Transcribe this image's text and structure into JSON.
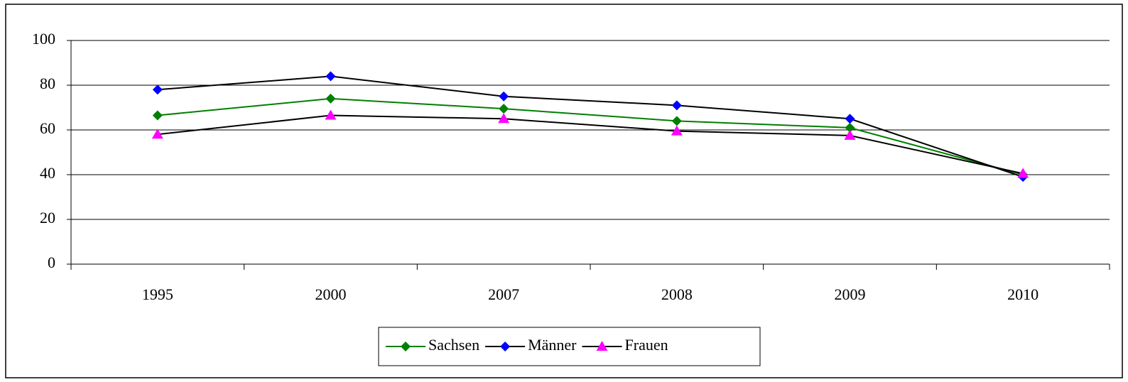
{
  "chart_data": {
    "type": "line",
    "categories": [
      "1995",
      "2000",
      "2007",
      "2008",
      "2009",
      "2010"
    ],
    "series": [
      {
        "name": "Sachsen",
        "color": "#008000",
        "line_color": "#008000",
        "marker": "diamond",
        "values": [
          66.5,
          74,
          69.5,
          64,
          61,
          40
        ]
      },
      {
        "name": "Männer",
        "color": "#0000ff",
        "line_color": "#000000",
        "marker": "diamond",
        "values": [
          78,
          84,
          75,
          71,
          65,
          39
        ]
      },
      {
        "name": "Frauen",
        "color": "#ff00ff",
        "line_color": "#000000",
        "marker": "triangle",
        "values": [
          58,
          66.5,
          65,
          59.5,
          57.5,
          40.5
        ]
      }
    ],
    "ylim": [
      0,
      100
    ],
    "yticks": [
      0,
      20,
      40,
      60,
      80,
      100
    ],
    "grid": true,
    "legend": "bottom"
  }
}
